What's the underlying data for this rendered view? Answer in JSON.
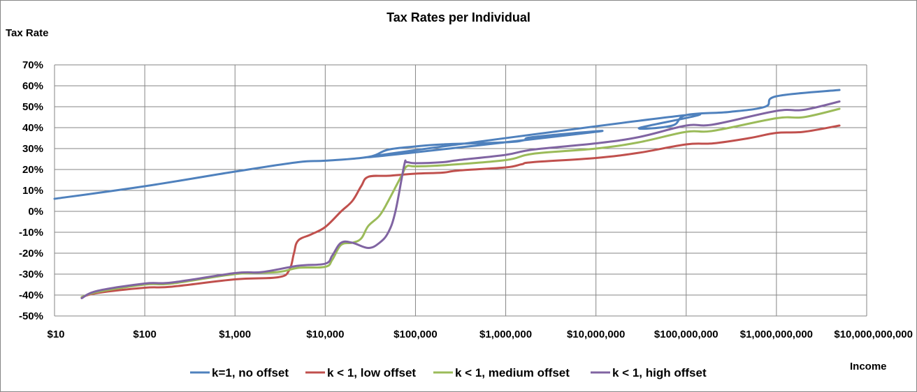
{
  "chart_data": {
    "type": "line",
    "title": "Tax Rates per Individual",
    "ylabel": "Tax Rate",
    "xlabel": "Income",
    "x_scale": "log",
    "xlim": [
      10,
      10000000000
    ],
    "ylim": [
      -50,
      70
    ],
    "grid": true,
    "legend_position": "bottom",
    "x_tick_values": [
      10,
      100,
      1000,
      10000,
      100000,
      1000000,
      10000000,
      100000000,
      1000000000,
      10000000000
    ],
    "x_tick_labels": [
      "$10",
      "$100",
      "$1,000",
      "$10,000",
      "$100,000",
      "$1,000,000",
      "$10,000,000",
      "$100,000,000",
      "$1,000,000,000",
      "$10,000,000,000"
    ],
    "y_tick_values": [
      70,
      60,
      50,
      40,
      30,
      20,
      10,
      0,
      -10,
      -20,
      -30,
      -40,
      -50
    ],
    "y_tick_labels": [
      "70%",
      "60%",
      "50%",
      "40%",
      "30%",
      "20%",
      "10%",
      "0%",
      "-10%",
      "-20%",
      "-30%",
      "-40%",
      "-50%"
    ],
    "series": [
      {
        "name": "k=1, no offset",
        "color": "#4f81bd",
        "points": [
          [
            10,
            6
          ],
          [
            100,
            12
          ],
          [
            1000,
            19
          ],
          [
            5000,
            23.5
          ],
          [
            10000,
            24.2
          ],
          [
            30000,
            26
          ],
          [
            50000,
            29.5
          ],
          [
            100000,
            31
          ],
          [
            200000,
            32
          ],
          [
            1000000,
            33
          ],
          [
            1600000,
            34
          ],
          [
            2000000,
            35.5
          ],
          [
            10000000,
            38
          ],
          [
            30000,
            26
          ],
          [
            100000000,
            46
          ],
          [
            30000000,
            39.8
          ],
          [
            70000000,
            41
          ],
          [
            100000000,
            46
          ],
          [
            300000000,
            47.5
          ],
          [
            750000000,
            50
          ],
          [
            1000000000,
            55
          ],
          [
            5000000000,
            58
          ]
        ]
      },
      {
        "name": "k < 1, low offset",
        "color": "#c0504d",
        "points": [
          [
            20,
            -41
          ],
          [
            30,
            -39
          ],
          [
            100,
            -36.5
          ],
          [
            200,
            -36
          ],
          [
            1000,
            -32.5
          ],
          [
            3000,
            -31.5
          ],
          [
            4000,
            -28
          ],
          [
            4500,
            -20
          ],
          [
            5000,
            -14
          ],
          [
            7000,
            -11
          ],
          [
            10000,
            -7.5
          ],
          [
            15000,
            0
          ],
          [
            20000,
            5
          ],
          [
            25000,
            12
          ],
          [
            30000,
            16.5
          ],
          [
            50000,
            17
          ],
          [
            100000,
            18
          ],
          [
            200000,
            18.5
          ],
          [
            300000,
            19.5
          ],
          [
            1000000,
            21
          ],
          [
            1500000,
            22.5
          ],
          [
            2000000,
            23.5
          ],
          [
            10000000,
            25.5
          ],
          [
            30000000,
            28
          ],
          [
            100000000,
            32
          ],
          [
            200000000,
            32.5
          ],
          [
            500000000,
            35
          ],
          [
            1000000000,
            37.5
          ],
          [
            2000000000,
            38
          ],
          [
            5000000000,
            41
          ]
        ]
      },
      {
        "name": "k < 1, medium offset",
        "color": "#9bbb59",
        "points": [
          [
            20,
            -41
          ],
          [
            30,
            -38.5
          ],
          [
            100,
            -35
          ],
          [
            200,
            -34.5
          ],
          [
            1000,
            -30
          ],
          [
            3000,
            -29
          ],
          [
            5000,
            -27
          ],
          [
            10000,
            -26.5
          ],
          [
            12000,
            -23
          ],
          [
            15000,
            -16
          ],
          [
            20000,
            -15
          ],
          [
            25000,
            -13
          ],
          [
            30000,
            -7
          ],
          [
            40000,
            -2
          ],
          [
            50000,
            5
          ],
          [
            70000,
            17
          ],
          [
            80000,
            21.5
          ],
          [
            100000,
            21.5
          ],
          [
            200000,
            22
          ],
          [
            1000000,
            24.5
          ],
          [
            2000000,
            27.5
          ],
          [
            10000000,
            30
          ],
          [
            30000000,
            33
          ],
          [
            100000000,
            38
          ],
          [
            200000000,
            38.5
          ],
          [
            1000000000,
            44.5
          ],
          [
            2000000000,
            45
          ],
          [
            5000000000,
            49
          ]
        ]
      },
      {
        "name": "k < 1, high offset",
        "color": "#8064a2",
        "points": [
          [
            20,
            -41.5
          ],
          [
            30,
            -38
          ],
          [
            100,
            -34.5
          ],
          [
            200,
            -34
          ],
          [
            1000,
            -29.5
          ],
          [
            2000,
            -29
          ],
          [
            5000,
            -26
          ],
          [
            10000,
            -25
          ],
          [
            12000,
            -21
          ],
          [
            15000,
            -15
          ],
          [
            20000,
            -15
          ],
          [
            30000,
            -17.5
          ],
          [
            40000,
            -15
          ],
          [
            50000,
            -10
          ],
          [
            60000,
            0
          ],
          [
            75000,
            22
          ],
          [
            80000,
            23.5
          ],
          [
            100000,
            23
          ],
          [
            200000,
            23.5
          ],
          [
            300000,
            24.5
          ],
          [
            1000000,
            27
          ],
          [
            2000000,
            29.5
          ],
          [
            10000000,
            32.5
          ],
          [
            30000000,
            35.5
          ],
          [
            100000000,
            41
          ],
          [
            200000000,
            41.5
          ],
          [
            1000000000,
            48
          ],
          [
            2000000000,
            48.5
          ],
          [
            5000000000,
            52.5
          ]
        ]
      }
    ]
  }
}
